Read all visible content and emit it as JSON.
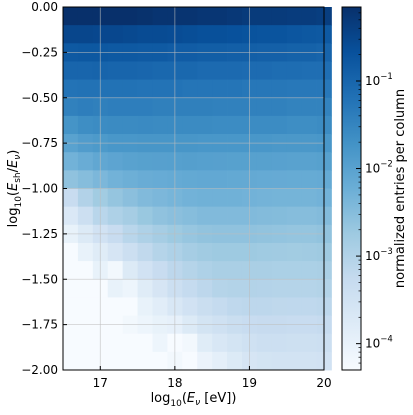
{
  "chart_data": {
    "type": "heatmap",
    "title": "",
    "xlabel": "log10(E_ν [eV])",
    "ylabel": "log10(E_sh/E_ν)",
    "colorbar_label": "normalized entries per column",
    "xlim": [
      16.5,
      20.0
    ],
    "ylim": [
      -2.0,
      0.0
    ],
    "x_ticks": [
      17,
      18,
      19,
      20
    ],
    "x_tick_labels": [
      "17",
      "18",
      "19",
      "20"
    ],
    "y_ticks": [
      0.0,
      -0.25,
      -0.5,
      -0.75,
      -1.0,
      -1.25,
      -1.5,
      -1.75,
      -2.0
    ],
    "y_tick_labels": [
      "0.00",
      "−0.25",
      "−0.50",
      "−0.75",
      "−1.00",
      "−1.25",
      "−1.50",
      "−1.75",
      "−2.00"
    ],
    "colorbar_scale": "log",
    "colorbar_range": [
      5e-05,
      0.7
    ],
    "colorbar_ticks": [
      0.1,
      0.01,
      0.001,
      0.0001
    ],
    "colorbar_tick_exponents": [
      "−1",
      "−2",
      "−3",
      "−4"
    ],
    "colorbar_tick_base": "10",
    "grid": true,
    "colormap": [
      "#f7fbff",
      "#deebf7",
      "#c6dbef",
      "#9ecae1",
      "#6baed6",
      "#4292c6",
      "#2171b5",
      "#08519c",
      "#08306b"
    ],
    "x_bins": {
      "start": 16.5,
      "width": 0.2,
      "count": 18
    },
    "y_bins": {
      "start": 0.0,
      "width": -0.1,
      "count": 20
    },
    "values_log10": [
      [
        -0.05,
        -0.08,
        -0.12,
        -0.15,
        -0.15,
        -0.18,
        -0.22,
        -0.22,
        -0.22,
        -0.25,
        -0.25,
        -0.28,
        -0.32,
        -0.32,
        -0.32,
        -0.35,
        -0.35,
        -0.38
      ],
      [
        -0.5,
        -0.5,
        -0.52,
        -0.52,
        -0.55,
        -0.58,
        -0.58,
        -0.6,
        -0.62,
        -0.65,
        -0.65,
        -0.68,
        -0.7,
        -0.72,
        -0.72,
        -0.75,
        -0.78,
        -0.8
      ],
      [
        -0.8,
        -0.78,
        -0.78,
        -0.8,
        -0.8,
        -0.82,
        -0.82,
        -0.85,
        -0.85,
        -0.88,
        -0.88,
        -0.9,
        -0.9,
        -0.92,
        -0.92,
        -0.95,
        -0.95,
        -0.98
      ],
      [
        -1.0,
        -1.0,
        -0.98,
        -1.0,
        -1.0,
        -1.02,
        -1.05,
        -1.05,
        -1.05,
        -1.08,
        -1.08,
        -1.08,
        -1.1,
        -1.1,
        -1.12,
        -1.12,
        -1.15,
        -1.15
      ],
      [
        -1.22,
        -1.2,
        -1.2,
        -1.2,
        -1.2,
        -1.22,
        -1.22,
        -1.22,
        -1.25,
        -1.25,
        -1.25,
        -1.25,
        -1.28,
        -1.28,
        -1.28,
        -1.3,
        -1.3,
        -1.3
      ],
      [
        -1.45,
        -1.4,
        -1.42,
        -1.4,
        -1.4,
        -1.4,
        -1.42,
        -1.42,
        -1.42,
        -1.42,
        -1.45,
        -1.45,
        -1.45,
        -1.45,
        -1.45,
        -1.48,
        -1.48,
        -1.48
      ],
      [
        -1.75,
        -1.65,
        -1.62,
        -1.6,
        -1.6,
        -1.58,
        -1.6,
        -1.6,
        -1.6,
        -1.6,
        -1.62,
        -1.62,
        -1.62,
        -1.62,
        -1.62,
        -1.65,
        -1.65,
        -1.62
      ],
      [
        -2.0,
        -1.9,
        -1.85,
        -1.8,
        -1.8,
        -1.78,
        -1.78,
        -1.78,
        -1.78,
        -1.8,
        -1.8,
        -1.8,
        -1.8,
        -1.8,
        -1.82,
        -1.82,
        -1.82,
        -1.8
      ],
      [
        -2.3,
        -2.2,
        -2.1,
        -2.05,
        -2.0,
        -1.98,
        -1.97,
        -1.96,
        -1.95,
        -1.96,
        -1.97,
        -1.98,
        -1.98,
        -1.98,
        -1.99,
        -2.0,
        -2.0,
        -1.98
      ],
      [
        -2.6,
        -2.5,
        -2.4,
        -2.3,
        -2.25,
        -2.2,
        -2.18,
        -2.15,
        -2.13,
        -2.12,
        -2.12,
        -2.13,
        -2.14,
        -2.15,
        -2.16,
        -2.17,
        -2.17,
        -2.15
      ],
      [
        -3.3,
        -3.0,
        -2.8,
        -2.65,
        -2.55,
        -2.45,
        -2.4,
        -2.35,
        -2.3,
        -2.28,
        -2.28,
        -2.28,
        -2.3,
        -2.32,
        -2.33,
        -2.33,
        -2.33,
        -2.3
      ],
      [
        -3.7,
        -3.4,
        -3.1,
        -2.95,
        -2.85,
        -2.7,
        -2.6,
        -2.55,
        -2.5,
        -2.45,
        -2.45,
        -2.45,
        -2.45,
        -2.47,
        -2.48,
        -2.5,
        -2.5,
        -2.47
      ],
      [
        -4.0,
        -3.75,
        -3.5,
        -3.3,
        -3.1,
        -2.95,
        -2.85,
        -2.75,
        -2.68,
        -2.62,
        -2.6,
        -2.6,
        -2.6,
        -2.62,
        -2.63,
        -2.65,
        -2.65,
        -2.62
      ],
      [
        -4.3,
        -4.0,
        -3.8,
        -3.6,
        -3.4,
        -3.2,
        -3.05,
        -2.95,
        -2.85,
        -2.78,
        -2.75,
        -2.75,
        -2.75,
        -2.77,
        -2.78,
        -2.8,
        -2.78,
        -2.76
      ],
      [
        -4.3,
        -4.3,
        -4.0,
        -4.2,
        -3.75,
        -3.5,
        -3.3,
        -3.15,
        -3.05,
        -2.95,
        -2.9,
        -2.9,
        -2.9,
        -2.9,
        -2.92,
        -2.92,
        -2.92,
        -2.9
      ],
      [
        -4.3,
        -4.3,
        -4.3,
        -4.0,
        -4.1,
        -3.8,
        -3.6,
        -3.4,
        -3.25,
        -3.15,
        -3.05,
        -3.02,
        -3.02,
        -3.03,
        -3.05,
        -3.05,
        -3.05,
        -3.02
      ],
      [
        -4.3,
        -4.3,
        -4.3,
        -4.3,
        -4.3,
        -4.0,
        -3.85,
        -3.65,
        -3.5,
        -3.35,
        -3.25,
        -3.18,
        -3.15,
        -3.15,
        -3.17,
        -3.18,
        -3.18,
        -3.15
      ],
      [
        -4.3,
        -4.3,
        -4.3,
        -4.3,
        -4.2,
        -4.1,
        -4.0,
        -3.95,
        -3.75,
        -3.55,
        -3.45,
        -3.35,
        -3.3,
        -3.28,
        -3.28,
        -3.3,
        -3.3,
        -3.27
      ],
      [
        -4.3,
        -4.3,
        -4.3,
        -4.3,
        -4.3,
        -4.3,
        -4.1,
        -4.3,
        -4.2,
        -3.8,
        -3.65,
        -3.55,
        -3.45,
        -3.4,
        -3.4,
        -3.42,
        -3.42,
        -3.4
      ],
      [
        -4.3,
        -4.3,
        -4.3,
        -4.3,
        -4.3,
        -4.3,
        -4.3,
        -4.2,
        -4.3,
        -4.05,
        -3.9,
        -3.75,
        -3.6,
        -3.55,
        -3.52,
        -3.52,
        -3.52,
        -3.5
      ]
    ]
  }
}
